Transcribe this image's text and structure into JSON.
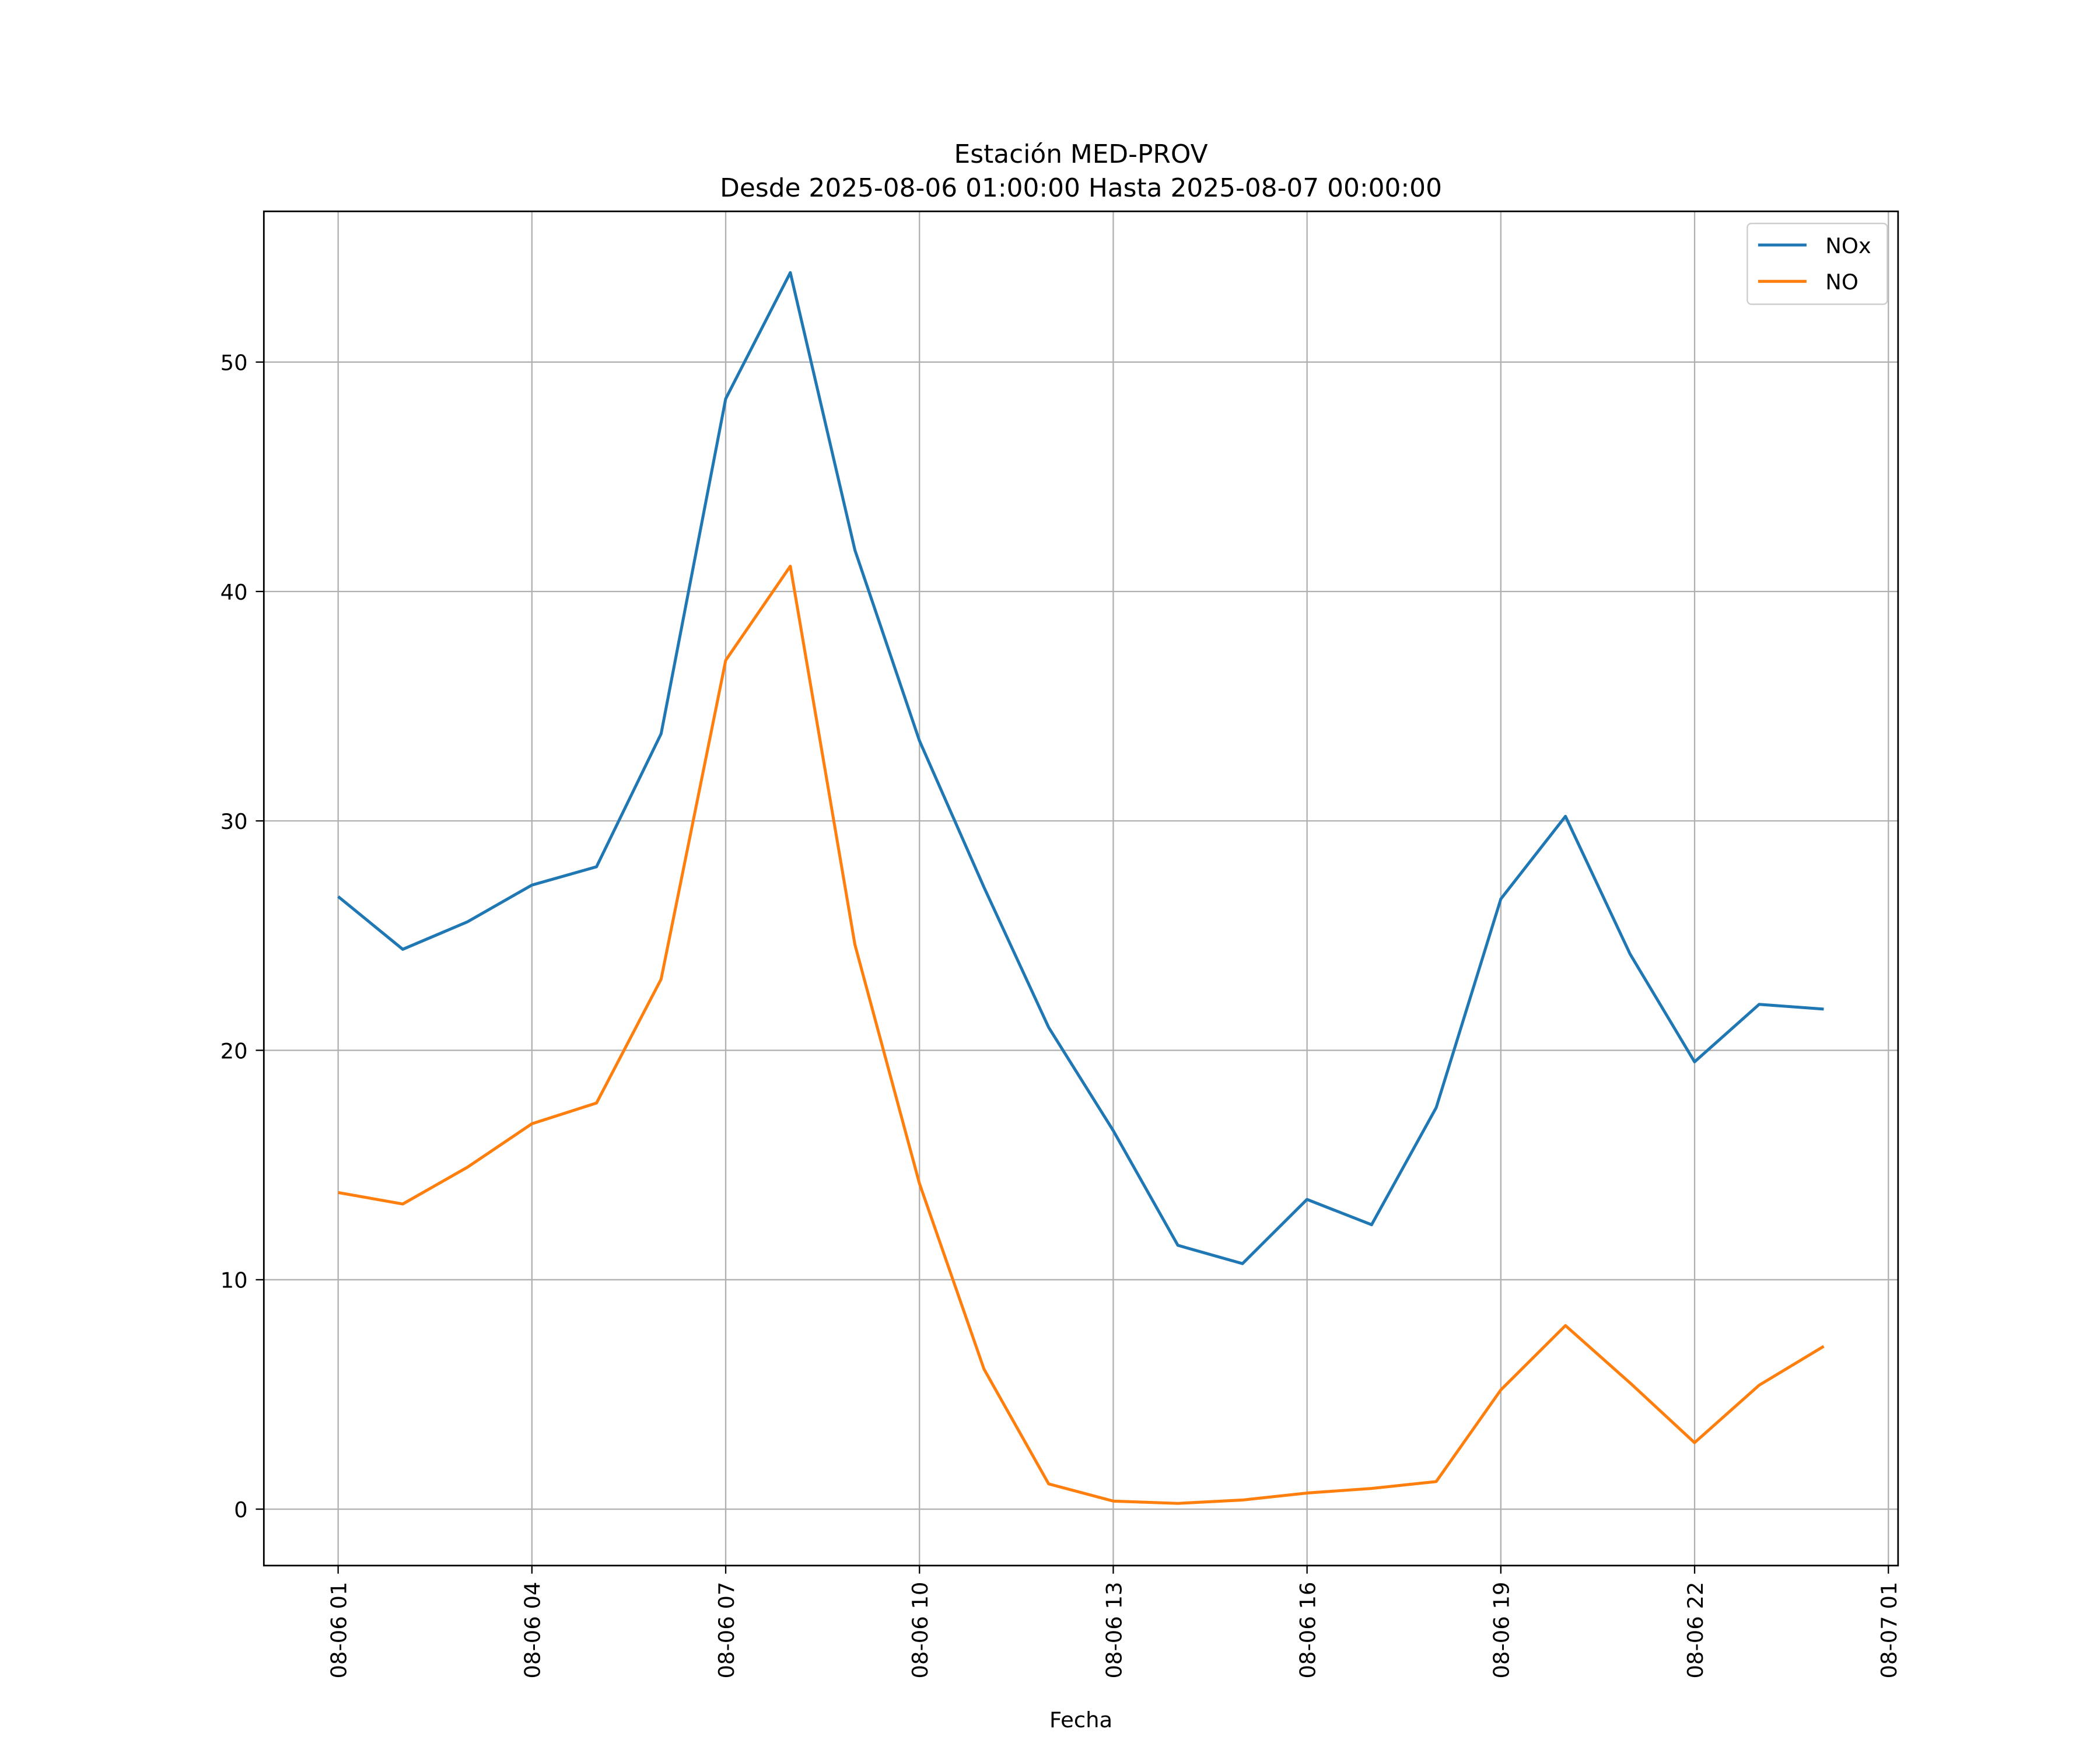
{
  "chart_data": {
    "type": "line",
    "title": "Estación MED-PROV",
    "subtitle": "Desde 2025-08-06 01:00:00 Hasta 2025-08-07 00:00:00",
    "xlabel": "Fecha",
    "ylabel": "",
    "x_unit": "hours since 2025-08-06 00:00",
    "x": [
      1,
      2,
      3,
      4,
      5,
      6,
      7,
      8,
      9,
      10,
      11,
      12,
      13,
      14,
      15,
      16,
      17,
      18,
      19,
      20,
      21,
      22,
      23,
      24
    ],
    "series": [
      {
        "name": "NOx",
        "color": "#1f77b4",
        "values": [
          26.7,
          24.4,
          25.6,
          27.2,
          28.0,
          33.8,
          48.4,
          53.9,
          41.8,
          33.5,
          27.1,
          21.0,
          16.5,
          11.5,
          10.7,
          13.5,
          12.4,
          17.5,
          26.6,
          30.2,
          24.2,
          19.5,
          22.0,
          21.8
        ]
      },
      {
        "name": "NO",
        "color": "#ff7f0e",
        "values": [
          13.8,
          13.3,
          14.9,
          16.8,
          17.7,
          23.1,
          37.0,
          41.1,
          24.6,
          14.2,
          6.1,
          1.1,
          0.35,
          0.25,
          0.4,
          0.7,
          0.9,
          1.2,
          5.2,
          8.0,
          5.5,
          2.9,
          5.4,
          7.1
        ]
      }
    ],
    "xlim": [
      -0.15,
      25.15
    ],
    "ylim": [
      -2.46,
      56.57
    ],
    "xticks": [
      1,
      4,
      7,
      10,
      13,
      16,
      19,
      22,
      25
    ],
    "xtick_labels": [
      "08-06 01",
      "08-06 04",
      "08-06 07",
      "08-06 10",
      "08-06 13",
      "08-06 16",
      "08-06 19",
      "08-06 22",
      "08-07 01"
    ],
    "yticks": [
      0,
      10,
      20,
      30,
      40,
      50
    ],
    "ytick_labels": [
      "0",
      "10",
      "20",
      "30",
      "40",
      "50"
    ],
    "grid": true,
    "legend_position": "top-right"
  }
}
